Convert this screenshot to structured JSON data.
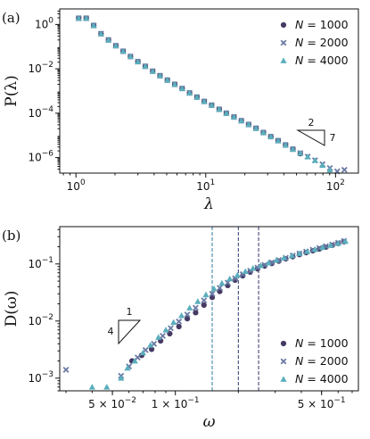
{
  "colors": {
    "N1000": "#463a64",
    "N2000": "#6a7aa4",
    "N4000": "#5aaebc",
    "axis": "#111111",
    "vline1": "#2f7ba0",
    "vline2": "#2a3a72",
    "vline3": "#3a3168"
  },
  "chart_data": [
    {
      "panel": "(a)",
      "type": "scatter",
      "xlabel": "λ",
      "ylabel": "P(λ)",
      "xscale": "log",
      "yscale": "log",
      "xlim": [
        0.75,
        150
      ],
      "ylim": [
        2e-07,
        5
      ],
      "xticks": [
        {
          "v": 1,
          "label": "10",
          "exp": "0"
        },
        {
          "v": 10,
          "label": "10",
          "exp": "1"
        },
        {
          "v": 100,
          "label": "10",
          "exp": "2"
        }
      ],
      "yticks": [
        {
          "v": 1,
          "label": "10",
          "exp": "0"
        },
        {
          "v": 0.01,
          "label": "10",
          "exp": "−2"
        },
        {
          "v": 0.0001,
          "label": "10",
          "exp": "−4"
        },
        {
          "v": 1e-06,
          "label": "10",
          "exp": "−6"
        }
      ],
      "legend": {
        "position": "top-right",
        "prefix": "N",
        "eq": "=",
        "entries": [
          "1000",
          "2000",
          "4000"
        ]
      },
      "triangle": {
        "top": "2",
        "side": "7"
      },
      "series": [
        {
          "name": "1000",
          "marker": "circle",
          "x": [
            1.05,
            1.2,
            1.37,
            1.56,
            1.78,
            2.03,
            2.31,
            2.63,
            3.0,
            3.42,
            3.9,
            4.44,
            5.06,
            5.77,
            6.58,
            7.5,
            8.55,
            9.74,
            11.1,
            12.7,
            14.4,
            16.5,
            18.8,
            21.4,
            24.4,
            27.8,
            31.7,
            36.1,
            41.2,
            46.9,
            53.5
          ],
          "y": [
            1.9,
            1.9,
            0.9,
            0.38,
            0.2,
            0.11,
            0.062,
            0.036,
            0.021,
            0.013,
            0.0078,
            0.0049,
            0.0031,
            0.002,
            0.0013,
            0.00082,
            0.00053,
            0.00034,
            0.00023,
            0.00015,
            0.0001,
            6.8e-05,
            4.6e-05,
            3.1e-05,
            2.1e-05,
            1.35e-05,
            8.8e-06,
            5.8e-06,
            3.7e-06,
            2.4e-06,
            1.5e-06
          ]
        },
        {
          "name": "2000",
          "marker": "x",
          "x": [
            1.05,
            1.2,
            1.37,
            1.56,
            1.78,
            2.03,
            2.31,
            2.63,
            3.0,
            3.42,
            3.9,
            4.44,
            5.06,
            5.77,
            6.58,
            7.5,
            8.55,
            9.74,
            11.1,
            12.7,
            14.4,
            16.5,
            18.8,
            21.4,
            24.4,
            27.8,
            31.7,
            36.1,
            41.2,
            46.9,
            53.5,
            61.0,
            69.5,
            79.3,
            90.4,
            103,
            117
          ],
          "y": [
            1.9,
            1.9,
            0.9,
            0.38,
            0.2,
            0.11,
            0.062,
            0.036,
            0.021,
            0.013,
            0.0078,
            0.0049,
            0.0031,
            0.002,
            0.0013,
            0.00082,
            0.00053,
            0.00034,
            0.00023,
            0.00015,
            0.0001,
            6.8e-05,
            4.6e-05,
            3.1e-05,
            2.1e-05,
            1.35e-05,
            8.8e-06,
            5.8e-06,
            3.7e-06,
            2.4e-06,
            1.6e-06,
            1.1e-06,
            7.5e-07,
            5e-07,
            3.4e-07,
            2.4e-07,
            2.8e-07
          ]
        },
        {
          "name": "4000",
          "marker": "triangle",
          "x": [
            1.05,
            1.2,
            1.37,
            1.56,
            1.78,
            2.03,
            2.31,
            2.63,
            3.0,
            3.42,
            3.9,
            4.44,
            5.06,
            5.77,
            6.58,
            7.5,
            8.55,
            9.74,
            11.1,
            12.7,
            14.4,
            16.5,
            18.8,
            21.4,
            24.4,
            27.8,
            31.7,
            36.1,
            41.2,
            46.9,
            53.5,
            61.0,
            69.5,
            79.3,
            90.4
          ],
          "y": [
            1.9,
            1.9,
            0.9,
            0.38,
            0.2,
            0.11,
            0.062,
            0.036,
            0.021,
            0.013,
            0.0078,
            0.0049,
            0.0031,
            0.002,
            0.0013,
            0.00082,
            0.00053,
            0.00034,
            0.00023,
            0.00015,
            0.0001,
            6.8e-05,
            4.6e-05,
            3.1e-05,
            2.1e-05,
            1.35e-05,
            8.8e-06,
            5.8e-06,
            3.7e-06,
            2.4e-06,
            1.6e-06,
            1.1e-06,
            7.5e-07,
            4.5e-07,
            2.8e-07
          ]
        }
      ]
    },
    {
      "panel": "(b)",
      "type": "scatter",
      "xlabel": "ω",
      "ylabel": "D(ω)",
      "xscale": "log",
      "yscale": "log",
      "xlim": [
        0.028,
        0.75
      ],
      "ylim": [
        0.0006,
        0.45
      ],
      "xticks": [
        {
          "v": 0.05,
          "label": "5 × 10",
          "exp": "−2"
        },
        {
          "v": 0.1,
          "label": "1 × 10",
          "exp": "−1"
        },
        {
          "v": 0.5,
          "label": "5 × 10",
          "exp": "−1"
        }
      ],
      "yticks": [
        {
          "v": 0.1,
          "label": "10",
          "exp": "−1"
        },
        {
          "v": 0.01,
          "label": "10",
          "exp": "−2"
        },
        {
          "v": 0.001,
          "label": "10",
          "exp": "−3"
        }
      ],
      "vlines": [
        0.15,
        0.2,
        0.25
      ],
      "legend": {
        "position": "bottom-right",
        "prefix": "N",
        "eq": "=",
        "entries": [
          "1000",
          "2000",
          "4000"
        ]
      },
      "triangle": {
        "top": "1",
        "side": "4"
      },
      "series": [
        {
          "name": "1000",
          "marker": "circle",
          "x": [
            0.062,
            0.069,
            0.077,
            0.085,
            0.094,
            0.104,
            0.114,
            0.125,
            0.137,
            0.15,
            0.163,
            0.178,
            0.193,
            0.21,
            0.228,
            0.247,
            0.267,
            0.289,
            0.312,
            0.337,
            0.364,
            0.392,
            0.422,
            0.454,
            0.488,
            0.524,
            0.562,
            0.6,
            0.64
          ],
          "y": [
            0.002,
            0.0025,
            0.0032,
            0.0045,
            0.006,
            0.008,
            0.011,
            0.014,
            0.019,
            0.026,
            0.033,
            0.042,
            0.052,
            0.062,
            0.072,
            0.082,
            0.092,
            0.102,
            0.112,
            0.123,
            0.134,
            0.146,
            0.158,
            0.17,
            0.183,
            0.197,
            0.212,
            0.228,
            0.245
          ]
        },
        {
          "name": "2000",
          "marker": "x",
          "x": [
            0.03,
            0.055,
            0.06,
            0.066,
            0.072,
            0.079,
            0.087,
            0.095,
            0.104,
            0.114,
            0.125,
            0.137,
            0.15,
            0.163,
            0.178,
            0.193,
            0.21,
            0.228,
            0.247,
            0.267,
            0.289,
            0.312,
            0.337,
            0.364,
            0.392,
            0.422,
            0.454,
            0.488,
            0.524,
            0.562,
            0.6,
            0.64
          ],
          "y": [
            0.0014,
            0.0011,
            0.0016,
            0.0023,
            0.0031,
            0.004,
            0.0055,
            0.0075,
            0.0098,
            0.013,
            0.017,
            0.023,
            0.03,
            0.038,
            0.047,
            0.056,
            0.066,
            0.076,
            0.086,
            0.096,
            0.106,
            0.117,
            0.128,
            0.14,
            0.152,
            0.164,
            0.177,
            0.19,
            0.204,
            0.219,
            0.235,
            0.252
          ]
        },
        {
          "name": "4000",
          "marker": "triangle",
          "x": [
            0.04,
            0.047,
            0.055,
            0.059,
            0.064,
            0.07,
            0.076,
            0.083,
            0.09,
            0.098,
            0.107,
            0.117,
            0.128,
            0.14,
            0.153,
            0.167,
            0.182,
            0.198,
            0.216,
            0.235,
            0.256,
            0.279,
            0.304,
            0.33,
            0.36,
            0.392,
            0.427,
            0.465,
            0.506,
            0.551,
            0.6,
            0.65
          ],
          "y": [
            0.0007,
            0.0007,
            0.001,
            0.0015,
            0.002,
            0.0028,
            0.0038,
            0.0052,
            0.007,
            0.0095,
            0.0125,
            0.017,
            0.022,
            0.029,
            0.037,
            0.046,
            0.055,
            0.064,
            0.074,
            0.084,
            0.094,
            0.105,
            0.116,
            0.128,
            0.14,
            0.153,
            0.166,
            0.18,
            0.195,
            0.212,
            0.23,
            0.25
          ]
        }
      ]
    }
  ]
}
